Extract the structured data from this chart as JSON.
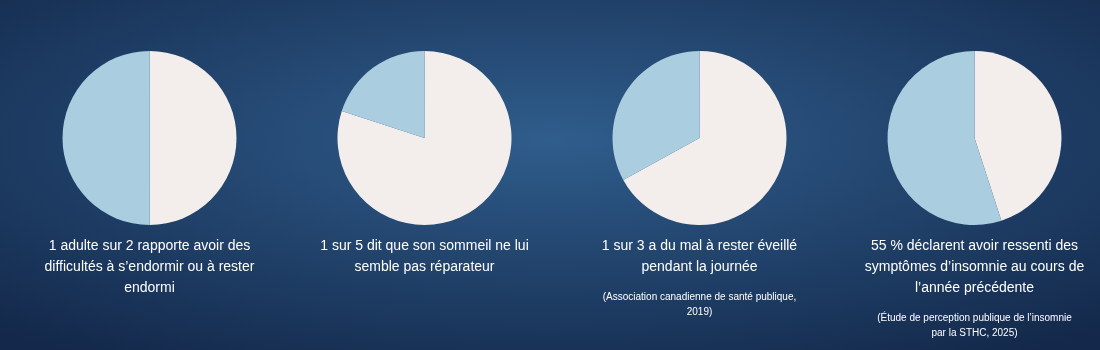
{
  "chart_data": [
    {
      "type": "pie",
      "title": "1 adulte sur 2 rapporte avoir des difficultés à s’endormir ou à rester endormi",
      "categories": [
        null,
        null
      ],
      "values": [
        50,
        50
      ],
      "colors": [
        "#f3eeec",
        "#abcde0"
      ]
    },
    {
      "type": "pie",
      "title": "1 sur 5 dit que son sommeil ne lui semble pas réparateur",
      "categories": [
        null,
        null
      ],
      "values": [
        80,
        20
      ],
      "colors": [
        "#f3eeec",
        "#abcde0"
      ]
    },
    {
      "type": "pie",
      "title": "1 sur 3 a du mal à rester éveillé pendant la journée",
      "categories": [
        null,
        null
      ],
      "values": [
        67,
        33
      ],
      "colors": [
        "#f3eeec",
        "#abcde0"
      ],
      "annotations": [
        "(Association canadienne de santé publique, 2019)"
      ]
    },
    {
      "type": "pie",
      "title": "55 % déclarent avoir ressenti des symptômes d’insomnie au cours de l’année précédente",
      "categories": [
        null,
        null
      ],
      "values": [
        45,
        55
      ],
      "colors": [
        "#f3eeec",
        "#abcde0"
      ],
      "annotations": [
        "(Étude de perception publique de l’insomnie par la STHC, 2025)"
      ]
    }
  ]
}
